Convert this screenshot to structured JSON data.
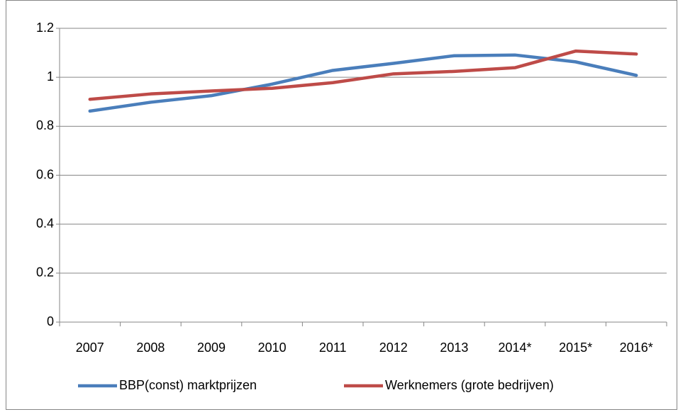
{
  "chart_data": {
    "type": "line",
    "categories": [
      "2007",
      "2008",
      "2009",
      "2010",
      "2011",
      "2012",
      "2013",
      "2014*",
      "2015*",
      "2016*"
    ],
    "series": [
      {
        "name": "BBP(const) marktprijzen",
        "color": "#4a7ebb",
        "values": [
          0.862,
          0.898,
          0.925,
          0.972,
          1.028,
          1.057,
          1.088,
          1.091,
          1.063,
          1.008
        ]
      },
      {
        "name": "Werknemers (grote bedrijven)",
        "color": "#be4b48",
        "values": [
          0.91,
          0.932,
          0.944,
          0.955,
          0.978,
          1.014,
          1.024,
          1.039,
          1.107,
          1.095
        ]
      }
    ],
    "ylim": [
      0,
      1.2
    ],
    "yticks": [
      0,
      0.2,
      0.4,
      0.6,
      0.8,
      1,
      1.2
    ],
    "grid": true,
    "legend": "bottom"
  }
}
